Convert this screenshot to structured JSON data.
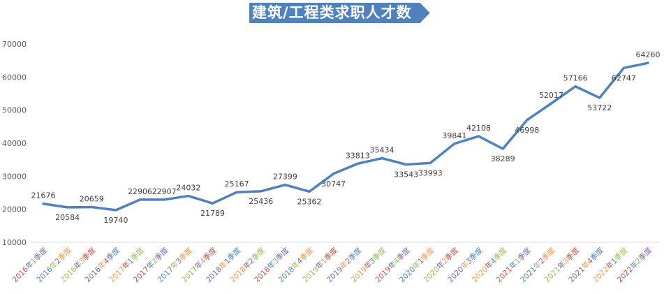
{
  "chart_data": {
    "type": "line",
    "title": "建筑/工程类求职人才数",
    "xlabel": "",
    "ylabel": "",
    "ylim": [
      10000,
      70000
    ],
    "yticks": [
      10000,
      20000,
      30000,
      40000,
      50000,
      60000,
      70000
    ],
    "grid": "baseline only",
    "legend": "none",
    "line_color": "#4f81bd",
    "title_bg_color": "#4f81bd",
    "tick_label_colors": [
      "#c0504d",
      "#4f81bd",
      "#9bbb59",
      "#8064a2",
      "#f79646"
    ],
    "categories": [
      "2016年1季度",
      "2016年2季度",
      "2016年3季度",
      "2016年4季度",
      "2017年1季度",
      "2017年2季度",
      "2017年3季度",
      "2017年4季度",
      "2018年1季度",
      "2018年2季度",
      "2018年3季度",
      "2018年4季度",
      "2019年1季度",
      "2019年2季度",
      "2019年3季度",
      "2019年4季度",
      "2020年1季度",
      "2020年2季度",
      "2020年3季度",
      "2020年4季度",
      "2021年1季度",
      "2021年2季度",
      "2021年3季度",
      "2021年4季度",
      "2022年1季度",
      "2022年2季度"
    ],
    "values": [
      21676,
      20584,
      20659,
      19740,
      22906,
      22907,
      24032,
      21789,
      25167,
      25436,
      27399,
      25362,
      30747,
      33813,
      35434,
      33543,
      33993,
      39841,
      42108,
      38289,
      46998,
      52017,
      57166,
      53722,
      62747,
      64260
    ],
    "label_placement": [
      "above",
      "below",
      "above",
      "below",
      "above",
      "above",
      "above",
      "below",
      "above",
      "below",
      "above",
      "below",
      "below",
      "above",
      "above",
      "below",
      "below",
      "above",
      "above",
      "below",
      "below",
      "above",
      "above",
      "below",
      "below",
      "above"
    ]
  }
}
